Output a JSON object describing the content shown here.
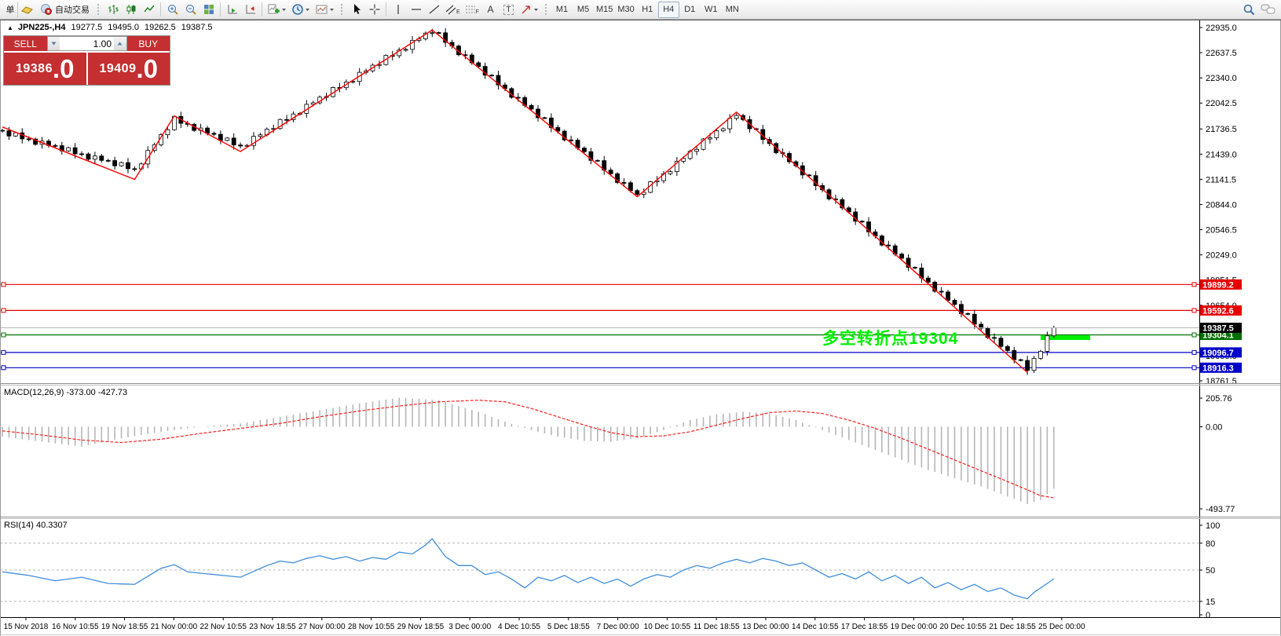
{
  "toolbar": {
    "new_order_partial": "单",
    "autotrading_label": "自动交易",
    "letters": {
      "a": "A",
      "t": "T",
      "e": "E",
      "f": "F"
    },
    "timeframes": [
      "M1",
      "M5",
      "M15",
      "M30",
      "H1",
      "H4",
      "D1",
      "W1",
      "MN"
    ],
    "active_timeframe": "H4"
  },
  "chart_header": {
    "collapse_icon": "▲",
    "symbol_period": "JPN225-,H4",
    "open": "19277.5",
    "high": "19495.0",
    "low": "19262.5",
    "close": "19387.5"
  },
  "trade_panel": {
    "sell_label": "SELL",
    "buy_label": "BUY",
    "volume": "1.00",
    "sell_price": "19386",
    "sell_price_pip": ".0",
    "buy_price": "19409",
    "buy_price_pip": ".0"
  },
  "indicator_labels": {
    "macd": "MACD(12,26,9) -373.00 -427.73",
    "rsi": "RSI(14) 40.3307"
  },
  "annotation": {
    "text": "多空转折点19304",
    "color": "#00ee00"
  },
  "chart_data": {
    "type": "candlestick",
    "symbol": "JPN225-",
    "period": "H4",
    "title": "JPN225-,H4 19277.5 19495.0 19262.5 19387.5",
    "price_axis": {
      "min": 18761.5,
      "max": 22935.0,
      "ticks": [
        "22935.0",
        "22637.5",
        "22340.0",
        "22042.5",
        "21736.5",
        "21439.0",
        "21141.5",
        "20844.0",
        "20546.5",
        "20249.0",
        "19951.5",
        "19654.0",
        "19356.5",
        "19059.0",
        "18761.5"
      ]
    },
    "time_axis": {
      "labels": [
        "15 Nov 2018",
        "16 Nov 10:55",
        "19 Nov 18:55",
        "21 Nov 00:00",
        "22 Nov 10:55",
        "23 Nov 18:55",
        "27 Nov 00:00",
        "28 Nov 10:55",
        "29 Nov 18:55",
        "3 Dec 00:00",
        "4 Dec 10:55",
        "5 Dec 18:55",
        "7 Dec 00:00",
        "10 Dec 10:55",
        "11 Dec 18:55",
        "13 Dec 00:00",
        "14 Dec 10:55",
        "17 Dec 18:55",
        "19 Dec 00:00",
        "20 Dec 10:55",
        "21 Dec 18:55",
        "25 Dec 00:00"
      ]
    },
    "first_open": 21720,
    "closes": [
      21715,
      21653,
      21691,
      21619,
      21617,
      21555,
      21593,
      21541,
      21539,
      21477,
      21515,
      21443,
      21441,
      21379,
      21417,
      21365,
      21363,
      21301,
      21339,
      21267,
      21265,
      21323,
      21482,
      21550,
      21668,
      21727,
      21885,
      21803,
      21791,
      21719,
      21747,
      21685,
      21673,
      21601,
      21629,
      21547,
      21535,
      21542,
      21649,
      21667,
      21734,
      21741,
      21848,
      21846,
      21913,
      21920,
      22027,
      22045,
      22112,
      22119,
      22226,
      22224,
      22291,
      22298,
      22405,
      22423,
      22490,
      22497,
      22604,
      22602,
      22669,
      22676,
      22783,
      22801,
      22868,
      22875,
      22872,
      22759,
      22716,
      22613,
      22610,
      22518,
      22475,
      22372,
      22369,
      22256,
      22213,
      22110,
      22107,
      22014,
      21971,
      21869,
      21866,
      21753,
      21710,
      21607,
      21604,
      21511,
      21468,
      21365,
      21362,
      21250,
      21207,
      21104,
      21101,
      21008,
      20965,
      20988,
      21112,
      21125,
      21208,
      21232,
      21355,
      21388,
      21472,
      21495,
      21618,
      21632,
      21715,
      21738,
      21862,
      21895,
      21847,
      21739,
      21730,
      21612,
      21564,
      21456,
      21448,
      21349,
      21301,
      21193,
      21185,
      21067,
      21018,
      20910,
      20902,
      20804,
      20756,
      20647,
      20639,
      20521,
      20473,
      20365,
      20356,
      20258,
      20210,
      20102,
      20094,
      19975,
      19927,
      19819,
      19811,
      19713,
      19664,
      19556,
      19548,
      19430,
      19382,
      19273,
      19265,
      19167,
      19119,
      19011,
      19002,
      18885,
      19027,
      19110,
      19293,
      19388
    ],
    "wick_cycle": [
      20,
      45,
      12,
      55,
      30,
      18,
      50,
      25
    ],
    "zigzag": {
      "color": "#ff0000",
      "points": [
        [
          0,
          21760
        ],
        [
          20,
          21140
        ],
        [
          26,
          21890
        ],
        [
          36,
          21470
        ],
        [
          65,
          22905
        ],
        [
          96,
          20935
        ],
        [
          111,
          21935
        ],
        [
          155,
          18860
        ]
      ]
    },
    "hlines": [
      {
        "price": 19899.2,
        "label": "19899.2",
        "color": "#e60000"
      },
      {
        "price": 19592.6,
        "label": "19592.6",
        "color": "#e60000"
      },
      {
        "price": 19304.1,
        "label": "19304.1",
        "color": "#007000"
      },
      {
        "price": 19096.7,
        "label": "19096.7",
        "color": "#0000c8"
      },
      {
        "price": 18916.3,
        "label": "18916.3",
        "color": "#0000c8"
      }
    ],
    "current_price": {
      "value": 19387.5,
      "label": "19387.5",
      "line_color": "#b4b4b4",
      "label_bg": "#000000"
    },
    "green_segment": {
      "price": 19272,
      "bar_start": 157,
      "bar_end": 164.5,
      "color": "#00ee00",
      "thickness": 6
    },
    "macd": {
      "name": "MACD(12,26,9)",
      "main_value": -373.0,
      "signal_value": -427.73,
      "axis_ticks": [
        "205.76",
        "0.00",
        "-493.77"
      ],
      "histogram_color": "#b6b6b6",
      "signal_color": "#ff2020",
      "keyframes": [
        [
          0,
          -60,
          -25
        ],
        [
          6,
          -90,
          -50
        ],
        [
          12,
          -120,
          -80
        ],
        [
          18,
          -70,
          -95
        ],
        [
          24,
          -30,
          -75
        ],
        [
          30,
          0,
          -40
        ],
        [
          36,
          20,
          -10
        ],
        [
          42,
          60,
          20
        ],
        [
          48,
          100,
          60
        ],
        [
          54,
          140,
          95
        ],
        [
          60,
          175,
          125
        ],
        [
          66,
          160,
          150
        ],
        [
          72,
          90,
          160
        ],
        [
          76,
          30,
          150
        ],
        [
          80,
          -20,
          110
        ],
        [
          84,
          -60,
          60
        ],
        [
          88,
          -85,
          10
        ],
        [
          92,
          -90,
          -35
        ],
        [
          96,
          -70,
          -60
        ],
        [
          100,
          -20,
          -55
        ],
        [
          104,
          40,
          -30
        ],
        [
          108,
          75,
          10
        ],
        [
          112,
          90,
          50
        ],
        [
          116,
          80,
          85
        ],
        [
          120,
          40,
          95
        ],
        [
          124,
          -20,
          80
        ],
        [
          128,
          -80,
          40
        ],
        [
          132,
          -140,
          -10
        ],
        [
          136,
          -200,
          -70
        ],
        [
          140,
          -260,
          -135
        ],
        [
          144,
          -310,
          -200
        ],
        [
          148,
          -360,
          -265
        ],
        [
          152,
          -420,
          -330
        ],
        [
          155,
          -465,
          -380
        ],
        [
          157,
          -440,
          -415
        ],
        [
          159,
          -373,
          -428
        ]
      ]
    },
    "rsi": {
      "name": "RSI(14)",
      "value": 40.3307,
      "axis_ticks": [
        "100",
        "80",
        "50",
        "15",
        "0"
      ],
      "levels": [
        80,
        50,
        15
      ],
      "line_color": "#3f8edc",
      "keyframes": [
        [
          0,
          48
        ],
        [
          4,
          44
        ],
        [
          8,
          38
        ],
        [
          12,
          42
        ],
        [
          16,
          35
        ],
        [
          20,
          34
        ],
        [
          24,
          52
        ],
        [
          26,
          56
        ],
        [
          28,
          48
        ],
        [
          32,
          45
        ],
        [
          36,
          42
        ],
        [
          40,
          55
        ],
        [
          42,
          60
        ],
        [
          44,
          58
        ],
        [
          46,
          63
        ],
        [
          48,
          66
        ],
        [
          50,
          62
        ],
        [
          52,
          65
        ],
        [
          54,
          60
        ],
        [
          56,
          64
        ],
        [
          58,
          62
        ],
        [
          60,
          70
        ],
        [
          62,
          68
        ],
        [
          64,
          78
        ],
        [
          65,
          85
        ],
        [
          67,
          65
        ],
        [
          69,
          55
        ],
        [
          71,
          55
        ],
        [
          73,
          45
        ],
        [
          75,
          48
        ],
        [
          77,
          40
        ],
        [
          79,
          30
        ],
        [
          81,
          42
        ],
        [
          83,
          38
        ],
        [
          85,
          44
        ],
        [
          87,
          36
        ],
        [
          89,
          42
        ],
        [
          91,
          35
        ],
        [
          93,
          40
        ],
        [
          95,
          32
        ],
        [
          97,
          40
        ],
        [
          99,
          45
        ],
        [
          101,
          42
        ],
        [
          103,
          50
        ],
        [
          105,
          55
        ],
        [
          107,
          52
        ],
        [
          109,
          58
        ],
        [
          111,
          62
        ],
        [
          113,
          58
        ],
        [
          115,
          63
        ],
        [
          117,
          60
        ],
        [
          119,
          55
        ],
        [
          121,
          58
        ],
        [
          123,
          50
        ],
        [
          125,
          42
        ],
        [
          127,
          46
        ],
        [
          129,
          40
        ],
        [
          131,
          48
        ],
        [
          133,
          38
        ],
        [
          135,
          44
        ],
        [
          137,
          35
        ],
        [
          139,
          42
        ],
        [
          141,
          30
        ],
        [
          143,
          36
        ],
        [
          145,
          28
        ],
        [
          147,
          34
        ],
        [
          149,
          26
        ],
        [
          151,
          30
        ],
        [
          153,
          22
        ],
        [
          155,
          18
        ],
        [
          156,
          25
        ],
        [
          157,
          30
        ],
        [
          158,
          35
        ],
        [
          159,
          40.33
        ]
      ]
    }
  }
}
